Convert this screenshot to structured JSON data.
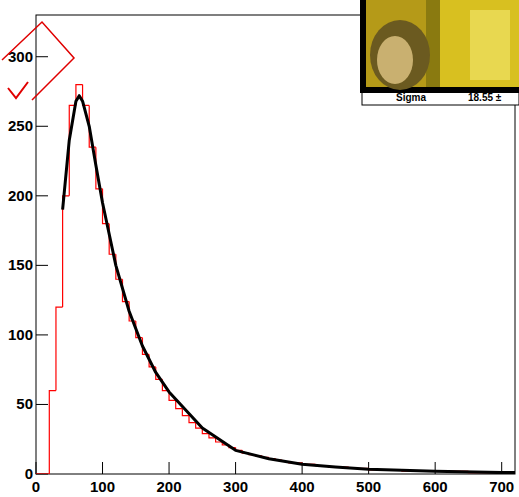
{
  "chart_data": {
    "type": "histogram",
    "annotations": [
      "Sigma",
      "18.55 ±"
    ],
    "bins": [
      0,
      10,
      20,
      30,
      40,
      50,
      60,
      70,
      80,
      90,
      100,
      110,
      120,
      130,
      140,
      150,
      160,
      170,
      180,
      190,
      200,
      210,
      220,
      230,
      240,
      250,
      260,
      270,
      280,
      290,
      300,
      310,
      320,
      330,
      340,
      350,
      360,
      370,
      380,
      390,
      400,
      410,
      420,
      430,
      440,
      450,
      460,
      470,
      480,
      490,
      500,
      510,
      520,
      530,
      540,
      550,
      560,
      570,
      580,
      590,
      600,
      610,
      620,
      630,
      640,
      650,
      660,
      670,
      680,
      690,
      700,
      710,
      720
    ],
    "series": [
      {
        "type": "bar",
        "color": "#ff0000",
        "values": [
          0,
          0,
          60,
          120,
          200,
          265,
          280,
          265,
          235,
          205,
          180,
          158,
          140,
          124,
          110,
          98,
          86,
          77,
          68,
          60,
          53,
          47,
          42,
          37,
          33,
          29,
          26,
          23,
          21,
          19,
          17,
          15,
          14,
          13,
          12,
          11,
          10,
          9,
          8,
          8,
          7,
          7,
          6,
          6,
          5,
          5,
          5,
          4,
          4,
          4,
          3,
          3,
          3,
          3,
          3,
          2,
          2,
          2,
          2,
          2,
          2,
          2,
          2,
          2,
          2,
          1,
          1,
          1,
          1,
          1,
          1,
          1
        ]
      },
      {
        "type": "line",
        "color": "#000000",
        "x": [
          40,
          50,
          60,
          65,
          70,
          80,
          90,
          100,
          120,
          140,
          160,
          180,
          200,
          250,
          300,
          350,
          400,
          450,
          500,
          600,
          700,
          720
        ],
        "values": [
          190,
          240,
          268,
          272,
          268,
          250,
          222,
          195,
          150,
          117,
          92,
          73,
          59,
          33,
          17,
          11,
          7,
          5,
          3.5,
          2,
          1,
          1
        ]
      }
    ],
    "xlim": [
      0,
      720
    ],
    "ylim": [
      0,
      330
    ],
    "xticks": [
      0,
      100,
      200,
      300,
      400,
      500,
      600,
      700
    ],
    "yticks": [
      0,
      50,
      100,
      150,
      200,
      250,
      300
    ]
  }
}
